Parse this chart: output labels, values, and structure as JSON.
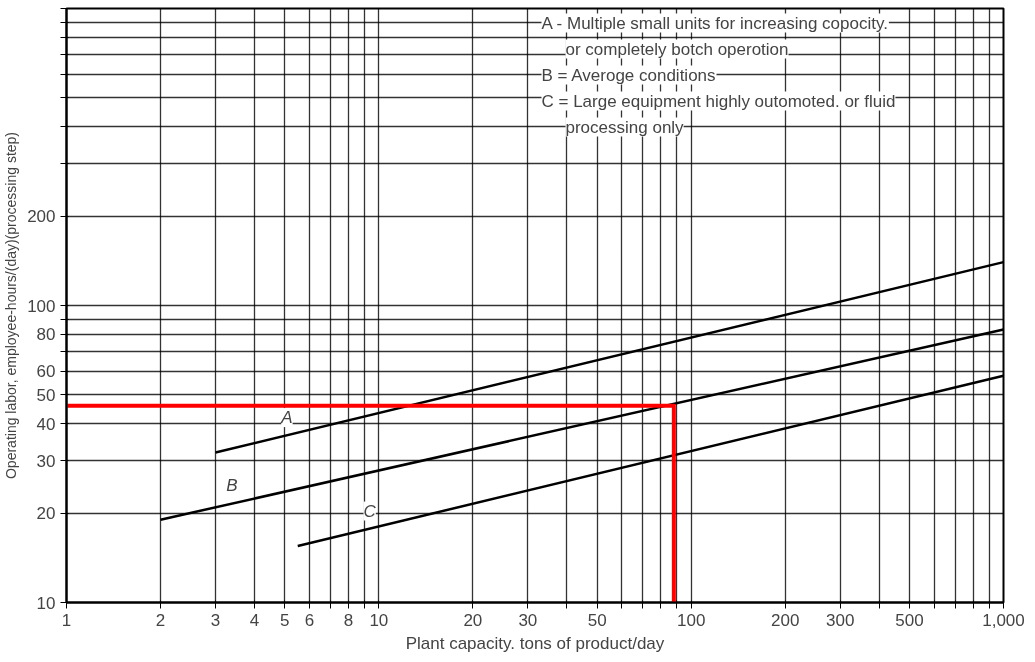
{
  "chart_data": {
    "type": "line",
    "xlabel": "Plant capacity. tons of product/day",
    "ylabel": "Operating labor, employee-hours/(day)(processing step)",
    "log": "xy",
    "grid": true,
    "marker": "none",
    "line_style": "solid",
    "xlim": [
      1,
      1000
    ],
    "ylim": [
      10,
      1000
    ],
    "xticks": [
      1,
      2,
      3,
      4,
      5,
      6,
      {
        "value": 7,
        "label": null
      },
      8,
      {
        "value": 9,
        "label": null
      },
      10,
      20,
      30,
      {
        "value": 40,
        "label": null
      },
      50,
      {
        "value": 60,
        "label": null
      },
      {
        "value": 70,
        "label": null
      },
      {
        "value": 80,
        "label": null
      },
      {
        "value": 90,
        "label": null
      },
      100,
      200,
      300,
      {
        "value": 400,
        "label": null
      },
      500,
      {
        "value": 600,
        "label": null
      },
      {
        "value": 700,
        "label": null
      },
      {
        "value": 800,
        "label": null
      },
      {
        "value": 900,
        "label": null
      },
      {
        "value": 1000,
        "label": "1,000"
      }
    ],
    "yticks": [
      10,
      20,
      30,
      40,
      50,
      60,
      {
        "value": 70,
        "label": null
      },
      80,
      {
        "value": 90,
        "label": null
      },
      100,
      200,
      {
        "value": 300,
        "label": null
      },
      {
        "value": 400,
        "label": null
      },
      {
        "value": 500,
        "label": null
      },
      {
        "value": 600,
        "label": null
      },
      {
        "value": 700,
        "label": null
      },
      {
        "value": 800,
        "label": null
      },
      {
        "value": 900,
        "label": null
      },
      {
        "value": 1000,
        "label": null
      }
    ],
    "series": [
      {
        "name": "A",
        "color": "#000000",
        "x": [
          3,
          1000
        ],
        "values": [
          32,
          140
        ]
      },
      {
        "name": "B",
        "color": "#000000",
        "x": [
          2,
          1000
        ],
        "values": [
          19,
          83
        ]
      },
      {
        "name": "C",
        "color": "#000000",
        "x": [
          5.5,
          1000
        ],
        "values": [
          15.5,
          58
        ]
      },
      {
        "color": "#ff0000",
        "x": [
          1,
          88,
          88
        ],
        "values": [
          46,
          46,
          10
        ]
      }
    ],
    "annotations": [
      "A - Multiple small units for increasing copocity.",
      "or completely botch operotion",
      "B = Averoge conditions",
      "C = Large equipment highly outomoted. or fluid",
      "processing only"
    ]
  }
}
